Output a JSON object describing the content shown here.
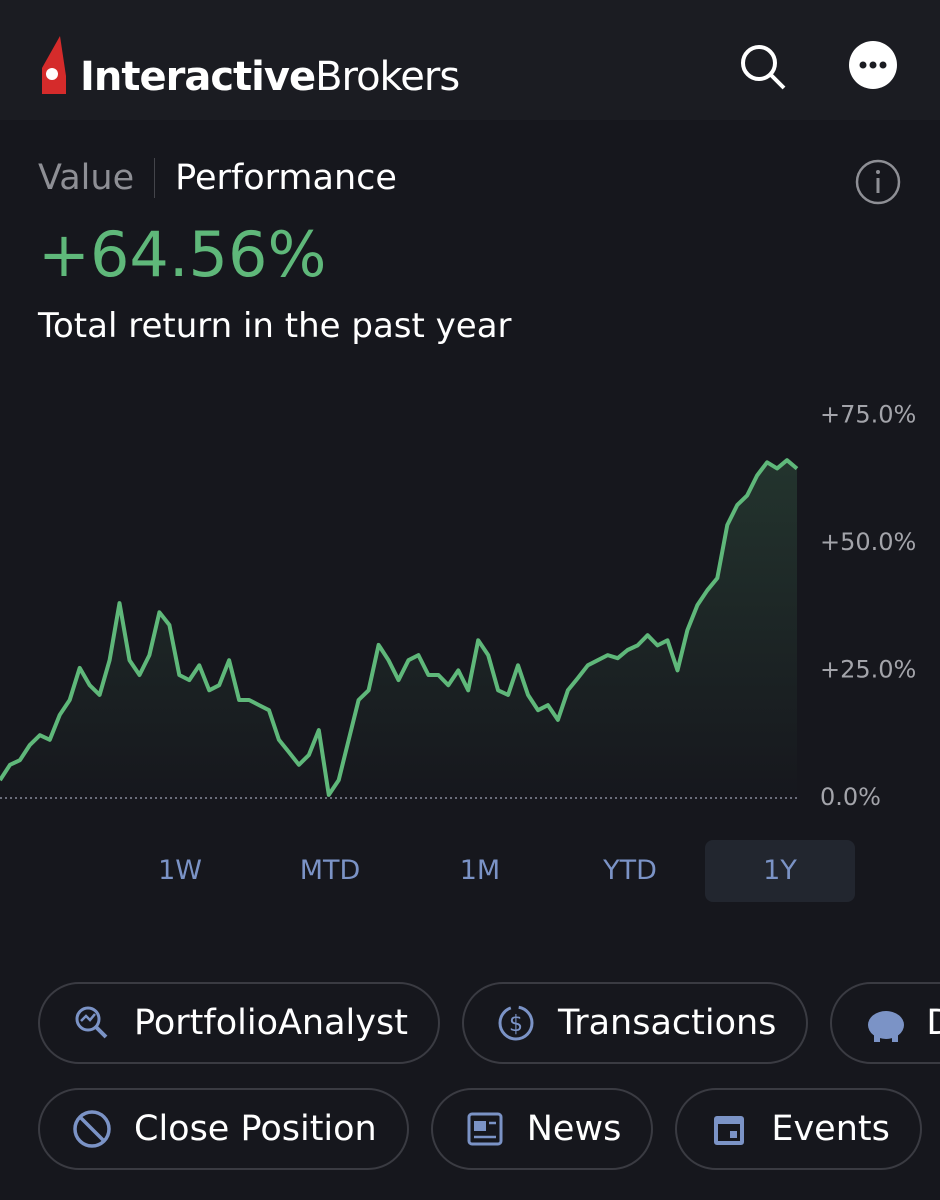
{
  "header": {
    "logo_bold": "Interactive",
    "logo_light": "Brokers"
  },
  "tabs": [
    "Value",
    "Performance"
  ],
  "headline": "+64.56%",
  "subtitle": "Total return in the past year",
  "chart_data": {
    "type": "line",
    "color": "#5fb87a",
    "values": [
      3.5,
      6.5,
      7.4,
      10.4,
      12.3,
      11.4,
      16.3,
      19.2,
      25.5,
      22.1,
      20.2,
      27,
      38.2,
      27,
      24.1,
      28,
      36.4,
      33.9,
      24.1,
      23.1,
      26,
      21.1,
      22.1,
      27,
      19.2,
      19.2,
      18.2,
      17.2,
      11.4,
      9,
      6.5,
      8.4,
      13.3,
      0.6,
      3.5,
      11.4,
      19.2,
      21.1,
      30,
      27,
      23.1,
      27,
      28,
      24.1,
      24.1,
      22.1,
      25,
      21.1,
      30.9,
      28,
      21.1,
      20.2,
      26,
      20.2,
      17.2,
      18.2,
      15.3,
      21.1,
      23.5,
      26,
      27,
      28,
      27.4,
      29,
      29.9,
      31.9,
      29.9,
      30.9,
      25,
      32.9,
      37.8,
      40.7,
      43.1,
      53.5,
      57.4,
      59.3,
      63.2,
      65.8,
      64.6,
      66.2,
      64.56
    ],
    "ylim": [
      0,
      78
    ],
    "yticks": [
      {
        "value": 0,
        "label": "0.0%"
      },
      {
        "value": 25,
        "label": "+25.0%"
      },
      {
        "value": 50,
        "label": "+50.0%"
      },
      {
        "value": 75,
        "label": "+75.0%"
      }
    ],
    "zero_line": true
  },
  "ranges": [
    "1W",
    "MTD",
    "1M",
    "YTD",
    "1Y"
  ],
  "selected_range_index": 4,
  "buttons_row1": [
    "PortfolioAnalyst",
    "Transactions",
    "D"
  ],
  "buttons_row2": [
    "Close Position",
    "News",
    "Events"
  ]
}
